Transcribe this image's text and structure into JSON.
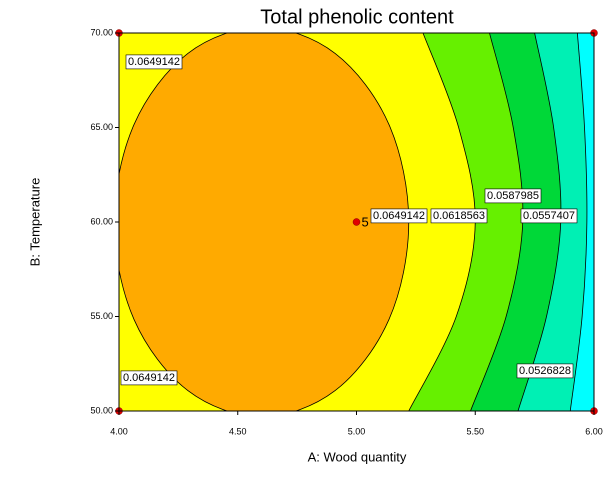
{
  "chart_data": {
    "type": "contour",
    "title": "Total phenolic content",
    "xlabel": "A: Wood quantity",
    "ylabel": "B: Temperature",
    "xlim": [
      4,
      6
    ],
    "ylim": [
      50,
      70
    ],
    "xticks": [
      {
        "value": 4,
        "label": "4.00"
      },
      {
        "value": 4.5,
        "label": "4.50"
      },
      {
        "value": 5,
        "label": "5.00"
      },
      {
        "value": 5.5,
        "label": "5.50"
      },
      {
        "value": 6,
        "label": "6.00"
      }
    ],
    "yticks": [
      {
        "value": 50,
        "label": "50.00"
      },
      {
        "value": 55,
        "label": "55.00"
      },
      {
        "value": 60,
        "label": "60.00"
      },
      {
        "value": 65,
        "label": "65.00"
      },
      {
        "value": 70,
        "label": "70.00"
      }
    ],
    "background_color": "#00ffff",
    "contours": [
      {
        "level": 0.0526828,
        "color": "#00f0b4",
        "closed": false,
        "x": [
          5.93,
          5.96,
          5.97,
          5.95,
          5.9
        ],
        "y": [
          70,
          65,
          60,
          55,
          50
        ]
      },
      {
        "level": 0.0557407,
        "color": "#00d838",
        "closed": false,
        "x": [
          5.75,
          5.83,
          5.86,
          5.8,
          5.68
        ],
        "y": [
          70,
          65,
          60,
          55,
          50
        ]
      },
      {
        "level": 0.0587985,
        "color": "#66f000",
        "closed": false,
        "x": [
          5.56,
          5.66,
          5.7,
          5.63,
          5.48
        ],
        "y": [
          70,
          65,
          60,
          55,
          50
        ]
      },
      {
        "level": 0.0618563,
        "color": "#ffff00",
        "closed": false,
        "x": [
          5.28,
          5.43,
          5.5,
          5.42,
          5.22
        ],
        "y": [
          70,
          65,
          60,
          55,
          50
        ]
      },
      {
        "level": 0.0649142,
        "color": "#ffaa00",
        "closed": true,
        "x": [
          5.22,
          5.137,
          4.91,
          4.6,
          4.29,
          4.063,
          3.98,
          4.063,
          4.29,
          4.6,
          4.91,
          5.137
        ],
        "y": [
          60,
          65.15,
          68.92,
          70.3,
          68.92,
          65.15,
          60,
          54.85,
          51.08,
          49.7,
          51.08,
          54.85
        ]
      }
    ],
    "points": {
      "color": "#e00000",
      "x": [
        4,
        6,
        4,
        6,
        5
      ],
      "y": [
        70,
        70,
        50,
        50,
        60
      ],
      "labels": [
        null,
        null,
        null,
        null,
        5
      ]
    }
  }
}
